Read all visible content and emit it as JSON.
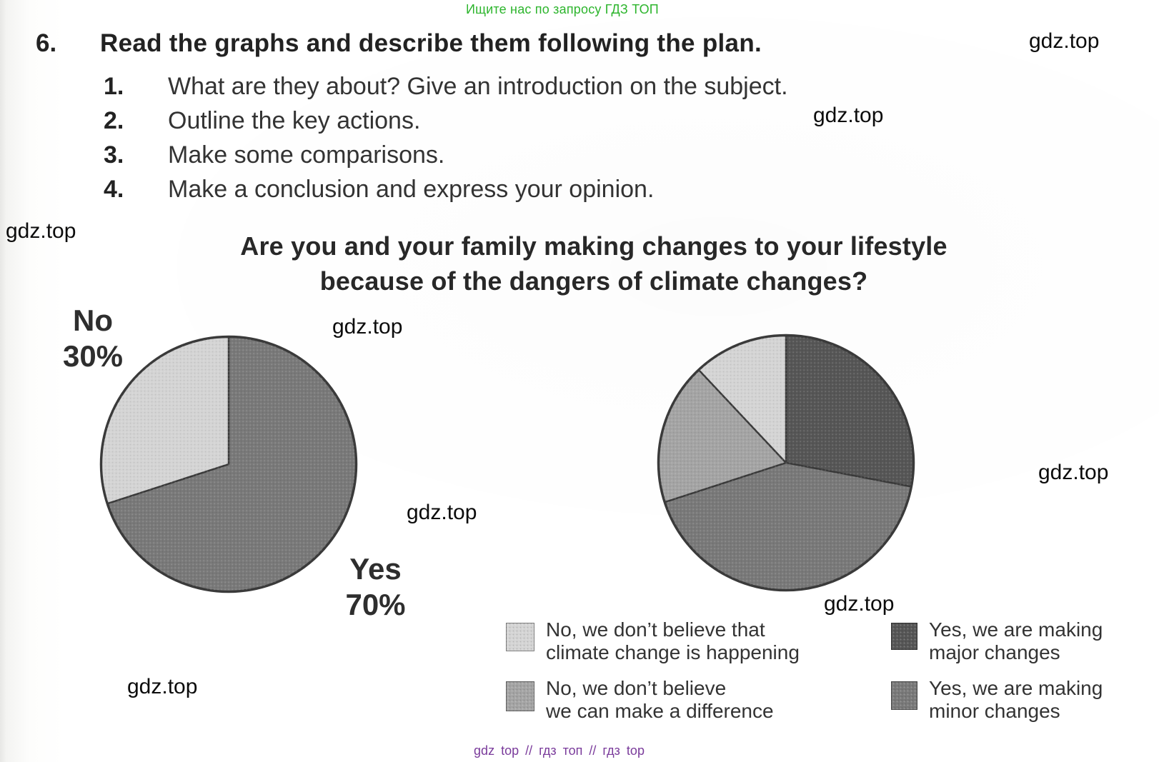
{
  "page": {
    "promo_top": "Ищите нас по запросу ГДЗ ТОП",
    "watermark": "gdz.top",
    "footer": "gdz top // гдз топ // гдз top"
  },
  "exercise": {
    "number": "6.",
    "title": "Read the graphs and describe them following the plan.",
    "steps": [
      {
        "num": "1.",
        "text": "What are they about? Give an introduction on the subject."
      },
      {
        "num": "2.",
        "text": "Outline the key actions."
      },
      {
        "num": "3.",
        "text": "Make some comparisons."
      },
      {
        "num": "4.",
        "text": "Make a conclusion and express your opinion."
      }
    ]
  },
  "chart_heading": {
    "line1": "Are you and your family making changes to your lifestyle",
    "line2": "because of the dangers of climate changes?"
  },
  "chart_data": [
    {
      "type": "pie",
      "title": "Are you and your family making changes to your lifestyle because of the dangers of climate changes? (overall)",
      "start_angle_deg": 0,
      "slices": [
        {
          "label": "Yes",
          "value": 70,
          "color": "#797979"
        },
        {
          "label": "No",
          "value": 30,
          "color": "#d4d4d4"
        }
      ],
      "annotations": [
        {
          "text": "No",
          "pct": "30%"
        },
        {
          "text": "Yes",
          "pct": "70%"
        }
      ]
    },
    {
      "type": "pie",
      "title": "Are you and your family making changes to your lifestyle because of the dangers of climate changes? (detail)",
      "start_angle_deg": 0,
      "slices": [
        {
          "label": "Yes, we are making major changes",
          "value": 28,
          "color": "#565656"
        },
        {
          "label": "Yes, we are making minor changes",
          "value": 42,
          "color": "#797979"
        },
        {
          "label": "No, we don’t believe we can make a difference",
          "value": 18,
          "color": "#a4a4a4"
        },
        {
          "label": "No, we don’t believe that climate change is happening",
          "value": 12,
          "color": "#d4d4d4"
        }
      ]
    }
  ],
  "legend": {
    "items": [
      {
        "swatch": "#d4d4d4",
        "line1": "No, we don’t believe that",
        "line2": "climate change is happening"
      },
      {
        "swatch": "#565656",
        "line1": "Yes, we are making",
        "line2": "major changes"
      },
      {
        "swatch": "#a4a4a4",
        "line1": "No, we don’t believe",
        "line2": "we can make a difference"
      },
      {
        "swatch": "#797979",
        "line1": "Yes, we are making",
        "line2": "minor changes"
      }
    ]
  }
}
